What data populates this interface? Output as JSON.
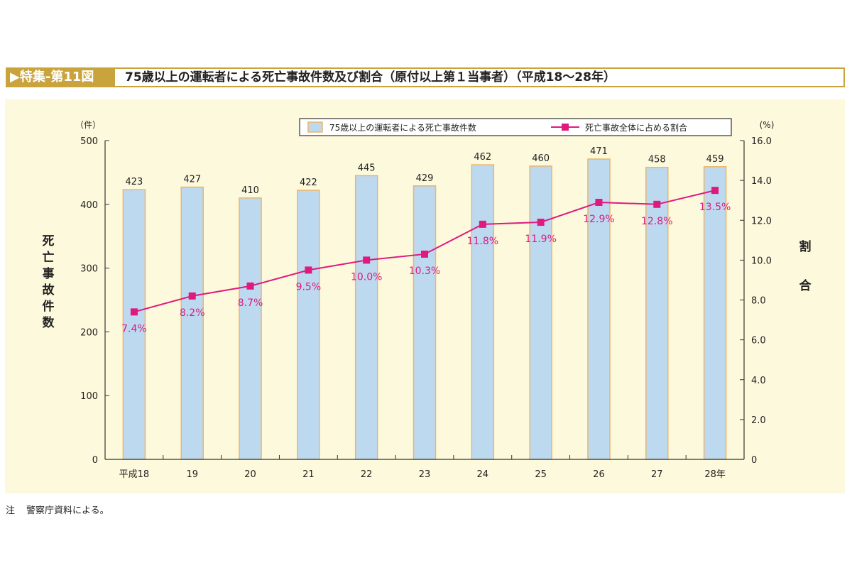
{
  "header": {
    "label": "▶特集-第11図",
    "title": "75歳以上の運転者による死亡事故件数及び割合（原付以上第１当事者）（平成18～28年）"
  },
  "note": {
    "prefix": "注",
    "text": "警察庁資料による。"
  },
  "colors": {
    "bar_fill": "#bdd9f0",
    "bar_border": "#ebb56a",
    "line": "#e0197f",
    "header": "#c9a43c",
    "panel": "#fdf9dc"
  },
  "chart_data": {
    "type": "bar+line",
    "categories": [
      "平成18",
      "19",
      "20",
      "21",
      "22",
      "23",
      "24",
      "25",
      "26",
      "27",
      "28年"
    ],
    "series": [
      {
        "name": "75歳以上の運転者による死亡事故件数",
        "type": "bar",
        "axis": "left",
        "values": [
          423,
          427,
          410,
          422,
          445,
          429,
          462,
          460,
          471,
          458,
          459
        ],
        "labels": [
          "423",
          "427",
          "410",
          "422",
          "445",
          "429",
          "462",
          "460",
          "471",
          "458",
          "459"
        ]
      },
      {
        "name": "死亡事故全体に占める割合",
        "type": "line",
        "axis": "right",
        "values": [
          7.4,
          8.2,
          8.7,
          9.5,
          10.0,
          10.3,
          11.8,
          11.9,
          12.9,
          12.8,
          13.5
        ],
        "labels": [
          "7.4%",
          "8.2%",
          "8.7%",
          "9.5%",
          "10.0%",
          "10.3%",
          "11.8%",
          "11.9%",
          "12.9%",
          "12.8%",
          "13.5%"
        ]
      }
    ],
    "left_axis": {
      "unit": "（件）",
      "label": "死亡事故件数",
      "range": [
        0,
        500
      ],
      "ticks": [
        "0",
        "100",
        "200",
        "300",
        "400",
        "500"
      ]
    },
    "right_axis": {
      "unit": "(%)",
      "label": "割合",
      "range": [
        0,
        16
      ],
      "ticks": [
        "0",
        "2.0",
        "4.0",
        "6.0",
        "8.0",
        "10.0",
        "12.0",
        "14.0",
        "16.0"
      ]
    },
    "legend_placement": "top-right",
    "grid": false
  }
}
